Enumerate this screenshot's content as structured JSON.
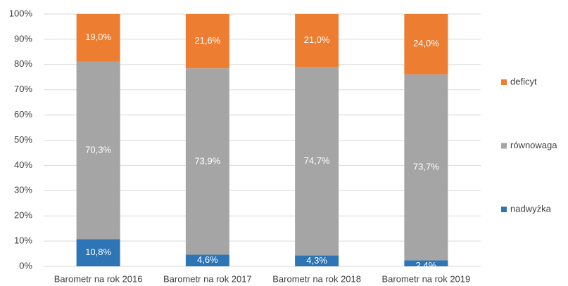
{
  "chart_data": {
    "type": "stacked_bar",
    "categories": [
      "Barometr na rok 2016",
      "Barometr na rok 2017",
      "Barometr na rok 2018",
      "Barometr na rok 2019"
    ],
    "series": [
      {
        "name": "nadwyżka",
        "color": "#2e75b6",
        "values": [
          10.8,
          4.6,
          4.3,
          2.4
        ],
        "value_labels": [
          "10,8%",
          "4,6%",
          "4,3%",
          "2,4%"
        ]
      },
      {
        "name": "równowaga",
        "color": "#a5a5a5",
        "values": [
          70.3,
          73.9,
          74.7,
          73.7
        ],
        "value_labels": [
          "70,3%",
          "73,9%",
          "74,7%",
          "73,7%"
        ]
      },
      {
        "name": "deficyt",
        "color": "#ed7d31",
        "values": [
          19.0,
          21.6,
          21.0,
          24.0
        ],
        "value_labels": [
          "19,0%",
          "21,6%",
          "21,0%",
          "24,0%"
        ]
      }
    ],
    "ylim": [
      0,
      100
    ],
    "yticks": [
      {
        "value": 0,
        "label": "0%"
      },
      {
        "value": 10,
        "label": "10%"
      },
      {
        "value": 20,
        "label": "20%"
      },
      {
        "value": 30,
        "label": "30%"
      },
      {
        "value": 40,
        "label": "40%"
      },
      {
        "value": 50,
        "label": "50%"
      },
      {
        "value": 60,
        "label": "60%"
      },
      {
        "value": 70,
        "label": "70%"
      },
      {
        "value": 80,
        "label": "80%"
      },
      {
        "value": 90,
        "label": "90%"
      },
      {
        "value": 100,
        "label": "100%"
      }
    ],
    "grid": true,
    "legend": "right"
  }
}
